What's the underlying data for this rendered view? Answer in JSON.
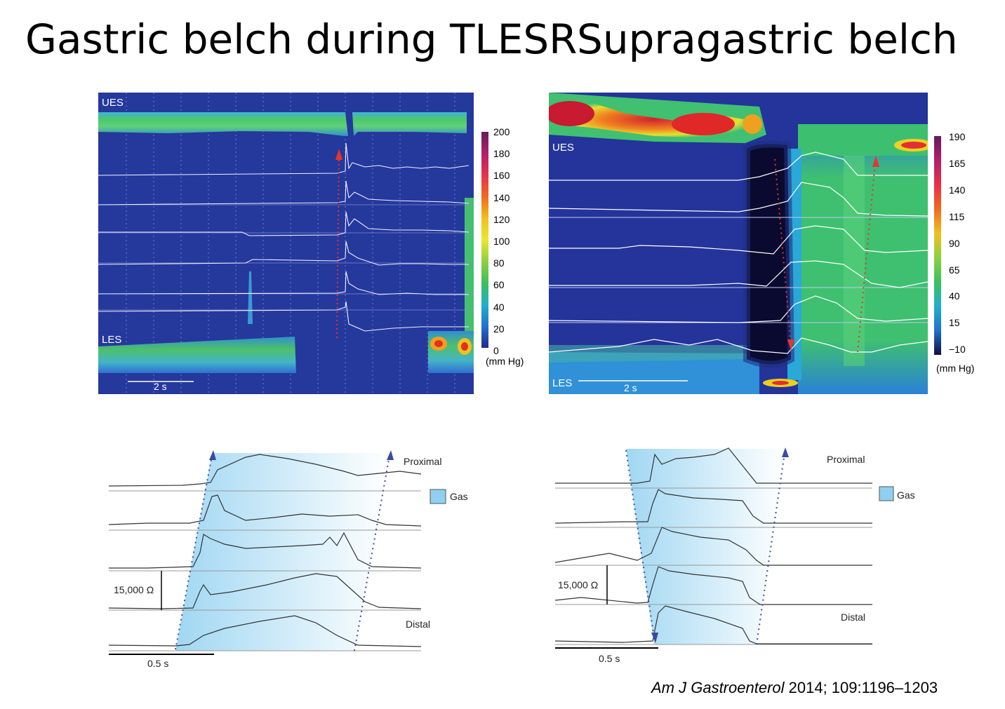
{
  "titles": {
    "left": "Gastric belch during TLESR",
    "right": "Supragastric belch"
  },
  "hrm_left": {
    "label_top": "UES",
    "label_bottom": "LES",
    "time_scale": "2 s",
    "colorbar_ticks": [
      "200",
      "180",
      "160",
      "140",
      "120",
      "100",
      "80",
      "60",
      "40",
      "20",
      "0"
    ],
    "unit": "(mm Hg)"
  },
  "hrm_right": {
    "label_top": "UES",
    "label_bottom": "LES",
    "time_scale": "2 s",
    "colorbar_ticks": [
      "190",
      "165",
      "140",
      "115",
      "90",
      "65",
      "40",
      "15",
      "−10"
    ],
    "unit": "(mm Hg)"
  },
  "impedance_left": {
    "proximal": "Proximal",
    "distal": "Distal",
    "legend_gas": "Gas",
    "amplitude_scale": "15,000 Ω",
    "time_scale": "0.5 s"
  },
  "impedance_right": {
    "proximal": "Proximal",
    "distal": "Distal",
    "legend_gas": "Gas",
    "amplitude_scale": "15,000 Ω",
    "time_scale": "0.5 s"
  },
  "citation": {
    "journal": "Am J Gastroenterol",
    "details": " 2014; 109:1196–1203"
  },
  "colors": {
    "background": "#243a9e",
    "gas_fill": "#9ed6f2",
    "arrow_red": "#e8342a",
    "arrow_blue": "#3a4aa0"
  }
}
